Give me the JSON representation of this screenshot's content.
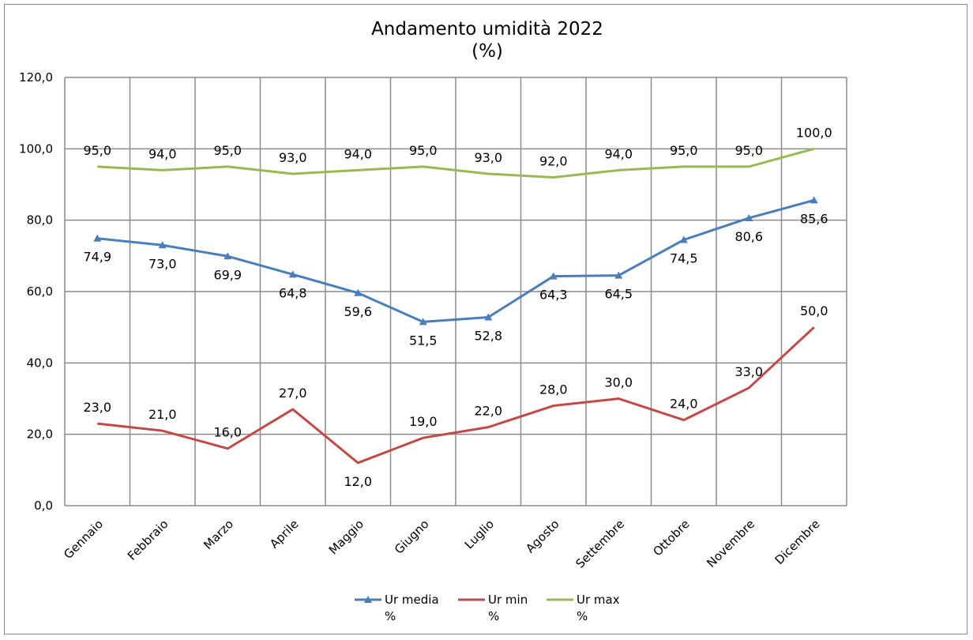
{
  "chart_data": {
    "type": "line",
    "title": "Andamento umidità 2022",
    "subtitle": "(%)",
    "categories": [
      "Gennaio",
      "Febbraio",
      "Marzo",
      "Aprile",
      "Maggio",
      "Giugno",
      "Luglio",
      "Agosto",
      "Settembre",
      "Ottobre",
      "Novembre",
      "Dicembre"
    ],
    "ylim": [
      0,
      120
    ],
    "yticks": [
      "0,0",
      "20,0",
      "40,0",
      "60,0",
      "80,0",
      "100,0",
      "120,0"
    ],
    "grid": true,
    "legend_position": "bottom",
    "series": [
      {
        "key": "media",
        "name": "Ur media",
        "unit": "%",
        "color": "#4a7ebb",
        "marker": "triangle",
        "values": [
          74.9,
          73.0,
          69.9,
          64.8,
          59.6,
          51.5,
          52.8,
          64.3,
          64.5,
          74.5,
          80.6,
          85.6
        ],
        "labels": [
          "74,9",
          "73,0",
          "69,9",
          "64,8",
          "59,6",
          "51,5",
          "52,8",
          "64,3",
          "64,5",
          "74,5",
          "80,6",
          "85,6"
        ]
      },
      {
        "key": "min",
        "name": "Ur min",
        "unit": "%",
        "color": "#be4b48",
        "marker": "none",
        "values": [
          23.0,
          21.0,
          16.0,
          27.0,
          12.0,
          19.0,
          22.0,
          28.0,
          30.0,
          24.0,
          33.0,
          50.0
        ],
        "labels": [
          "23,0",
          "21,0",
          "16,0",
          "27,0",
          "12,0",
          "19,0",
          "22,0",
          "28,0",
          "30,0",
          "24,0",
          "33,0",
          "50,0"
        ]
      },
      {
        "key": "max",
        "name": "Ur max",
        "unit": "%",
        "color": "#98b954",
        "marker": "none",
        "values": [
          95.0,
          94.0,
          95.0,
          93.0,
          94.0,
          95.0,
          93.0,
          92.0,
          94.0,
          95.0,
          95.0,
          100.0
        ],
        "labels": [
          "95,0",
          "94,0",
          "95,0",
          "93,0",
          "94,0",
          "95,0",
          "93,0",
          "92,0",
          "94,0",
          "95,0",
          "95,0",
          "100,0"
        ]
      }
    ]
  }
}
